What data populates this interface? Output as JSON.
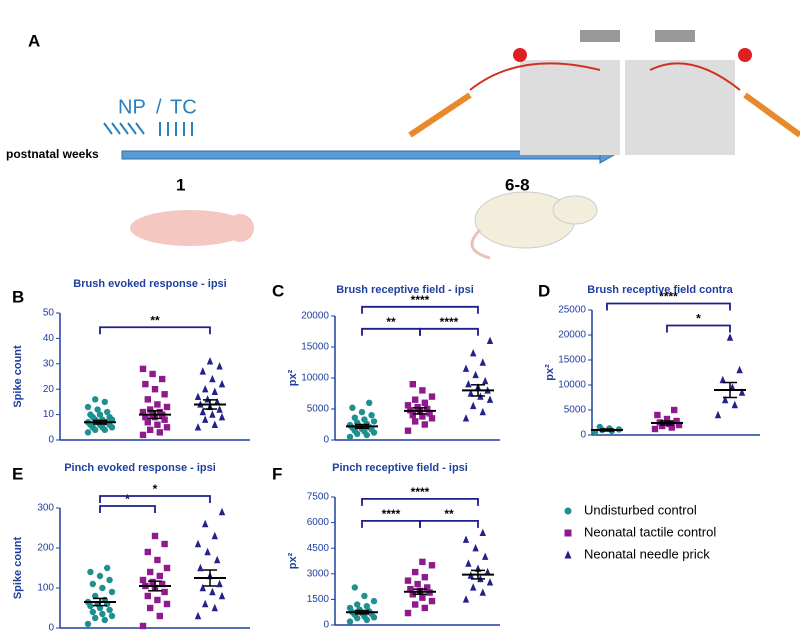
{
  "panel_a": {
    "letter": "A",
    "np": "NP",
    "slash": "/",
    "tc": "TC",
    "axis_label": "postnatal weeks",
    "time_1": "1",
    "time_2": "6-8"
  },
  "groups": [
    {
      "name": "Undisturbed control",
      "color": "#1f8f8f",
      "marker": "circle"
    },
    {
      "name": "Neonatal tactile control",
      "color": "#8e1a8e",
      "marker": "square"
    },
    {
      "name": "Neonatal needle prick",
      "color": "#22228a",
      "marker": "triangle"
    }
  ],
  "chart_data": [
    {
      "type": "dot",
      "panel": "B",
      "title": "Brush evoked response - ipsi",
      "y_label": "Spike count",
      "ylim": [
        0,
        50
      ],
      "yticks": [
        0,
        10,
        20,
        30,
        40,
        50
      ],
      "series": [
        {
          "values": [
            3,
            4,
            4,
            5,
            5,
            5,
            6,
            6,
            6,
            7,
            7,
            7,
            7,
            8,
            8,
            8,
            9,
            9,
            10,
            10,
            11,
            12,
            13,
            15,
            16
          ],
          "mean": 7,
          "sem": 0.7
        },
        {
          "values": [
            2,
            3,
            4,
            5,
            6,
            7,
            8,
            9,
            9,
            10,
            10,
            11,
            11,
            12,
            13,
            14,
            16,
            18,
            20,
            22,
            24,
            26,
            28
          ],
          "mean": 10,
          "sem": 1.5
        },
        {
          "values": [
            5,
            6,
            8,
            9,
            10,
            11,
            12,
            13,
            14,
            15,
            16,
            17,
            19,
            20,
            22,
            24,
            27,
            29,
            31
          ],
          "mean": 14,
          "sem": 1.8
        }
      ],
      "brackets": [
        {
          "from": 0,
          "to": 2,
          "label": "**"
        }
      ]
    },
    {
      "type": "dot",
      "panel": "C",
      "title": "Brush receptive field - ipsi",
      "y_label": "px²",
      "ylim": [
        0,
        20000
      ],
      "yticks": [
        0,
        5000,
        10000,
        15000,
        20000
      ],
      "series": [
        {
          "values": [
            500,
            800,
            1000,
            1200,
            1400,
            1500,
            1700,
            1800,
            2000,
            2100,
            2200,
            2400,
            2600,
            2800,
            3000,
            3300,
            3600,
            4000,
            4500,
            5200,
            6000
          ],
          "mean": 2200,
          "sem": 300
        },
        {
          "values": [
            1500,
            2500,
            3000,
            3500,
            3800,
            4000,
            4300,
            4600,
            4800,
            5000,
            5300,
            5600,
            6000,
            6500,
            7000,
            8000,
            9000
          ],
          "mean": 4700,
          "sem": 500
        },
        {
          "values": [
            3500,
            4500,
            5500,
            6500,
            7000,
            7500,
            8000,
            8500,
            9000,
            9500,
            10500,
            11500,
            12500,
            14000,
            16000
          ],
          "mean": 8000,
          "sem": 900
        }
      ],
      "brackets": [
        {
          "from": 0,
          "to": 1,
          "label": "**"
        },
        {
          "from": 1,
          "to": 2,
          "label": "****"
        },
        {
          "from": 0,
          "to": 2,
          "label": "****"
        }
      ]
    },
    {
      "type": "dot",
      "panel": "D",
      "title": "Brush receptive field contra",
      "y_label": "px²",
      "ylim": [
        0,
        25000
      ],
      "yticks": [
        0,
        5000,
        10000,
        15000,
        20000,
        25000
      ],
      "series": [
        {
          "values": [
            600,
            800,
            1000,
            1100,
            1300,
            1600
          ],
          "mean": 1000,
          "sem": 200
        },
        {
          "values": [
            1200,
            1500,
            1800,
            2000,
            2200,
            2500,
            2800,
            3200,
            4000,
            5000
          ],
          "mean": 2400,
          "sem": 400
        },
        {
          "values": [
            4000,
            6000,
            7000,
            8500,
            9500,
            11000,
            13000,
            19500
          ],
          "mean": 9000,
          "sem": 1500
        }
      ],
      "brackets": [
        {
          "from": 1,
          "to": 2,
          "label": "*"
        },
        {
          "from": 0,
          "to": 2,
          "label": "****"
        }
      ]
    },
    {
      "type": "dot",
      "panel": "E",
      "title": "Pinch evoked response - ipsi",
      "y_label": "Spike count",
      "ylim": [
        0,
        300
      ],
      "yticks": [
        0,
        100,
        200,
        300
      ],
      "series": [
        {
          "values": [
            10,
            20,
            25,
            30,
            35,
            40,
            45,
            50,
            55,
            60,
            60,
            65,
            70,
            80,
            90,
            100,
            110,
            120,
            130,
            140,
            150
          ],
          "mean": 65,
          "sem": 9
        },
        {
          "values": [
            5,
            30,
            50,
            60,
            70,
            80,
            90,
            100,
            105,
            110,
            115,
            120,
            130,
            140,
            150,
            170,
            190,
            210,
            230
          ],
          "mean": 105,
          "sem": 12
        },
        {
          "values": [
            30,
            50,
            60,
            80,
            90,
            100,
            110,
            130,
            150,
            170,
            190,
            210,
            230,
            260,
            290
          ],
          "mean": 125,
          "sem": 20
        }
      ],
      "brackets": [
        {
          "from": 0,
          "to": 1,
          "label": "*"
        },
        {
          "from": 0,
          "to": 2,
          "label": "*"
        }
      ]
    },
    {
      "type": "dot",
      "panel": "F",
      "title": "Pinch receptive field - ipsi",
      "y_label": "px²",
      "ylim": [
        0,
        7500
      ],
      "yticks": [
        0,
        1500,
        3000,
        4500,
        6000,
        7500
      ],
      "series": [
        {
          "values": [
            200,
            300,
            400,
            450,
            500,
            600,
            650,
            700,
            750,
            800,
            900,
            1000,
            1100,
            1200,
            1400,
            1700,
            2200
          ],
          "mean": 750,
          "sem": 100
        },
        {
          "values": [
            700,
            1000,
            1200,
            1400,
            1600,
            1800,
            1900,
            2000,
            2100,
            2200,
            2400,
            2600,
            2800,
            3100,
            3500,
            3700
          ],
          "mean": 1950,
          "sem": 150
        },
        {
          "values": [
            1500,
            1900,
            2200,
            2500,
            2700,
            2900,
            3100,
            3300,
            3600,
            4000,
            4500,
            5000,
            5400
          ],
          "mean": 2950,
          "sem": 250
        }
      ],
      "brackets": [
        {
          "from": 0,
          "to": 1,
          "label": "****"
        },
        {
          "from": 1,
          "to": 2,
          "label": "**"
        },
        {
          "from": 0,
          "to": 2,
          "label": "****"
        }
      ]
    }
  ]
}
